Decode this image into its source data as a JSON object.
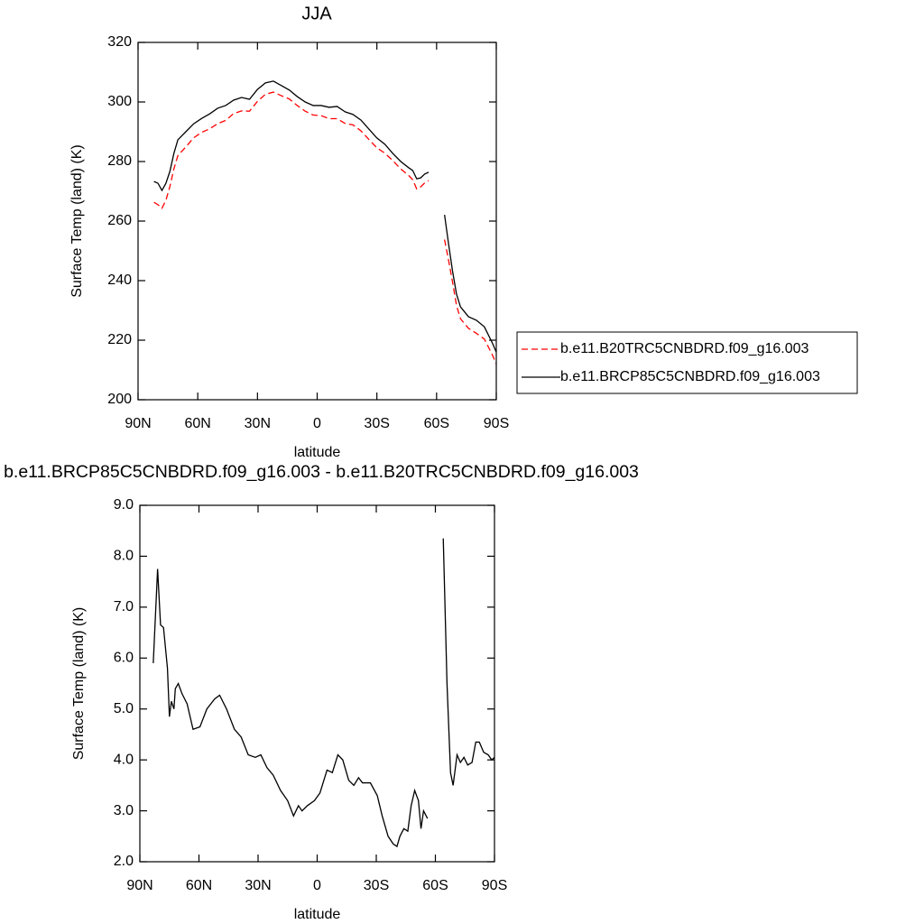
{
  "chart_data": [
    {
      "type": "line",
      "title": "JJA",
      "x_label": "latitude",
      "y_label": "Surface Temp (land) (K)",
      "x": [
        82,
        80,
        78,
        76,
        74,
        72,
        70,
        66,
        62,
        58,
        54,
        50,
        46,
        42,
        38,
        34,
        30,
        26,
        22,
        18,
        14,
        10,
        6,
        2,
        -2,
        -6,
        -10,
        -14,
        -18,
        -22,
        -26,
        -30,
        -34,
        -38,
        -42,
        -46,
        -48,
        -50,
        -52,
        -54,
        -56,
        -60,
        -64,
        -66,
        -68,
        -70,
        -72,
        -76,
        -80,
        -84,
        -88,
        -90
      ],
      "series": [
        {
          "name": "b.e11.B20TRC5CNBDRD.f09_g16.003",
          "color": "#ff0000",
          "line_style": "dashed",
          "values": [
            266.3,
            265.5,
            264.3,
            267.0,
            271.6,
            277.5,
            282.0,
            284.9,
            288.0,
            289.8,
            291.0,
            292.7,
            293.8,
            296.1,
            297.0,
            296.9,
            300.2,
            302.6,
            303.3,
            302.1,
            301.0,
            298.8,
            296.9,
            295.6,
            295.4,
            294.4,
            294.4,
            292.8,
            292.3,
            290.3,
            287.4,
            284.6,
            282.8,
            280.3,
            277.5,
            275.3,
            273.9,
            270.8,
            271.5,
            272.8,
            273.6,
            null,
            253.8,
            246.9,
            239.6,
            231.7,
            227.2,
            224.0,
            222.3,
            220.4,
            215.1,
            212.0
          ]
        },
        {
          "name": "b.e11.BRCP85C5CNBDRD.f09_g16.003",
          "color": "#000000",
          "line_style": "solid",
          "values": [
            273.3,
            272.7,
            270.3,
            272.7,
            276.7,
            282.7,
            287.3,
            290.0,
            292.7,
            294.5,
            296.0,
            297.9,
            298.8,
            300.6,
            301.5,
            300.9,
            304.2,
            306.4,
            307.0,
            305.5,
            304.0,
            301.8,
            300.0,
            298.8,
            298.8,
            298.2,
            298.5,
            296.7,
            295.8,
            293.9,
            290.9,
            287.9,
            285.8,
            282.7,
            280.0,
            277.9,
            277.0,
            274.2,
            274.5,
            275.8,
            276.4,
            null,
            262.1,
            252.4,
            243.3,
            235.5,
            231.2,
            227.9,
            226.7,
            224.5,
            219.1,
            216.0
          ]
        }
      ],
      "xlim": [
        90,
        -90
      ],
      "xticks": [
        {
          "value": 90,
          "label": "90N"
        },
        {
          "value": 60,
          "label": "60N"
        },
        {
          "value": 30,
          "label": "30N"
        },
        0,
        {
          "value": -30,
          "label": "30S"
        },
        {
          "value": -60,
          "label": "60S"
        },
        {
          "value": -90,
          "label": "90S"
        }
      ],
      "ylim": [
        200,
        320
      ],
      "yticks": [
        200,
        220,
        240,
        260,
        280,
        300,
        320
      ],
      "legend_position": "right"
    },
    {
      "type": "line",
      "title": "b.e11.BRCP85C5CNBDRD.f09_g16.003 - b.e11.B20TRC5CNBDRD.f09_g16.003",
      "x_label": "latitude",
      "y_label": "Surface Temp (land) (K)",
      "x": [
        83.2,
        81,
        79.5,
        78,
        76,
        75,
        74,
        72.7,
        72,
        70.5,
        68.6,
        66,
        63,
        59.5,
        56,
        52,
        49.5,
        46,
        42,
        38.6,
        35,
        31.4,
        28.6,
        25.5,
        22.3,
        18.6,
        15,
        12,
        9.5,
        7.7,
        5,
        1.4,
        -1.4,
        -5,
        -7.7,
        -10.5,
        -13,
        -16,
        -18.6,
        -21,
        -23,
        -27,
        -30.5,
        -33,
        -36,
        -38.6,
        -40.5,
        -42,
        -44,
        -46,
        -47.7,
        -49.5,
        -51.4,
        -52.7,
        -54,
        -56,
        -60,
        -64,
        -65.9,
        -67.7,
        -69,
        -71,
        -72.7,
        -74.5,
        -76.4,
        -78.6,
        -80.5,
        -82.3,
        -84.5,
        -86.8,
        -88.6,
        -90
      ],
      "series": [
        {
          "color": "#000000",
          "line_style": "solid",
          "values": [
            5.9,
            7.75,
            6.65,
            6.6,
            5.8,
            4.85,
            5.15,
            5.0,
            5.4,
            5.5,
            5.3,
            5.1,
            4.6,
            4.65,
            5.0,
            5.2,
            5.27,
            5.0,
            4.6,
            4.45,
            4.1,
            4.05,
            4.1,
            3.85,
            3.7,
            3.4,
            3.2,
            2.9,
            3.1,
            3.0,
            3.1,
            3.2,
            3.35,
            3.8,
            3.75,
            4.1,
            4.0,
            3.6,
            3.5,
            3.65,
            3.55,
            3.55,
            3.3,
            2.9,
            2.5,
            2.35,
            2.3,
            2.5,
            2.65,
            2.6,
            3.1,
            3.4,
            3.2,
            2.65,
            3.0,
            2.85,
            null,
            8.35,
            5.5,
            3.75,
            3.5,
            4.1,
            3.95,
            4.05,
            3.9,
            3.95,
            4.35,
            4.35,
            4.15,
            4.1,
            4.0,
            4.05
          ]
        }
      ],
      "xlim": [
        90,
        -90
      ],
      "xticks": [
        {
          "value": 90,
          "label": "90N"
        },
        {
          "value": 60,
          "label": "60N"
        },
        {
          "value": 30,
          "label": "30N"
        },
        0,
        {
          "value": -30,
          "label": "30S"
        },
        {
          "value": -60,
          "label": "60S"
        },
        {
          "value": -90,
          "label": "90S"
        }
      ],
      "ylim": [
        2,
        9
      ],
      "yticks": [
        {
          "value": 2,
          "label": "2.0"
        },
        {
          "value": 3,
          "label": "3.0"
        },
        {
          "value": 4,
          "label": "4.0"
        },
        {
          "value": 5,
          "label": "5.0"
        },
        {
          "value": 6,
          "label": "6.0"
        },
        {
          "value": 7,
          "label": "7.0"
        },
        {
          "value": 8,
          "label": "8.0"
        },
        {
          "value": 9,
          "label": "9.0"
        }
      ]
    }
  ]
}
